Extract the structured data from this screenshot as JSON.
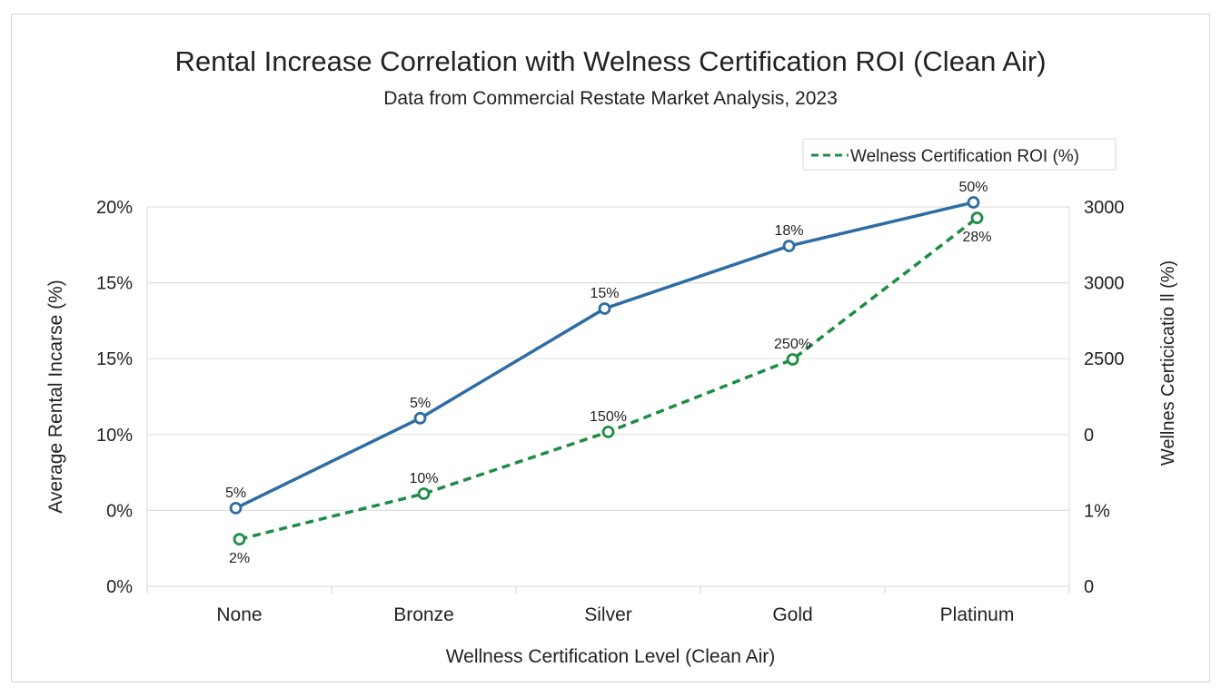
{
  "chart_data": {
    "type": "line",
    "title": "Rental Increase Correlation with Welness Certification ROI (Clean Air)",
    "subtitle": "Data from Commercial Restate Market Analysis, 2023",
    "xlabel": "Wellness Certification Level (Clean Air)",
    "ylabel": "Average Rental Incarse (%)",
    "y2label": "Wellnes Certicicatio ll (%)",
    "categories": [
      "None",
      "Bronze",
      "Silver",
      "Gold",
      "Platinum"
    ],
    "left_ticks": [
      "0%",
      "0%",
      "10%",
      "15%",
      "15%",
      "20%"
    ],
    "right_ticks": [
      "0",
      "1%",
      "0",
      "2500",
      "3000",
      "3000"
    ],
    "grid": true,
    "legend_position": "top-right",
    "y_scale_note_visible": false,
    "series": [
      {
        "axis": "left",
        "color": "#2e6da4",
        "style": "solid",
        "level_fraction": [
          0.206,
          0.443,
          0.732,
          0.897,
          1.012
        ],
        "labels": [
          "5%",
          "5%",
          "15%",
          "18%",
          "50%"
        ],
        "label_side": [
          "above",
          "above",
          "above",
          "above",
          "above"
        ]
      },
      {
        "name": "Welness Certification ROI (%)",
        "axis": "right",
        "color": "#1e8c45",
        "style": "dashed",
        "level_fraction": [
          0.124,
          0.244,
          0.407,
          0.598,
          0.971
        ],
        "labels": [
          "2%",
          "10%",
          "150%",
          "250%",
          "28%"
        ],
        "label_side": [
          "below",
          "above",
          "above",
          "above",
          "below"
        ]
      }
    ]
  }
}
